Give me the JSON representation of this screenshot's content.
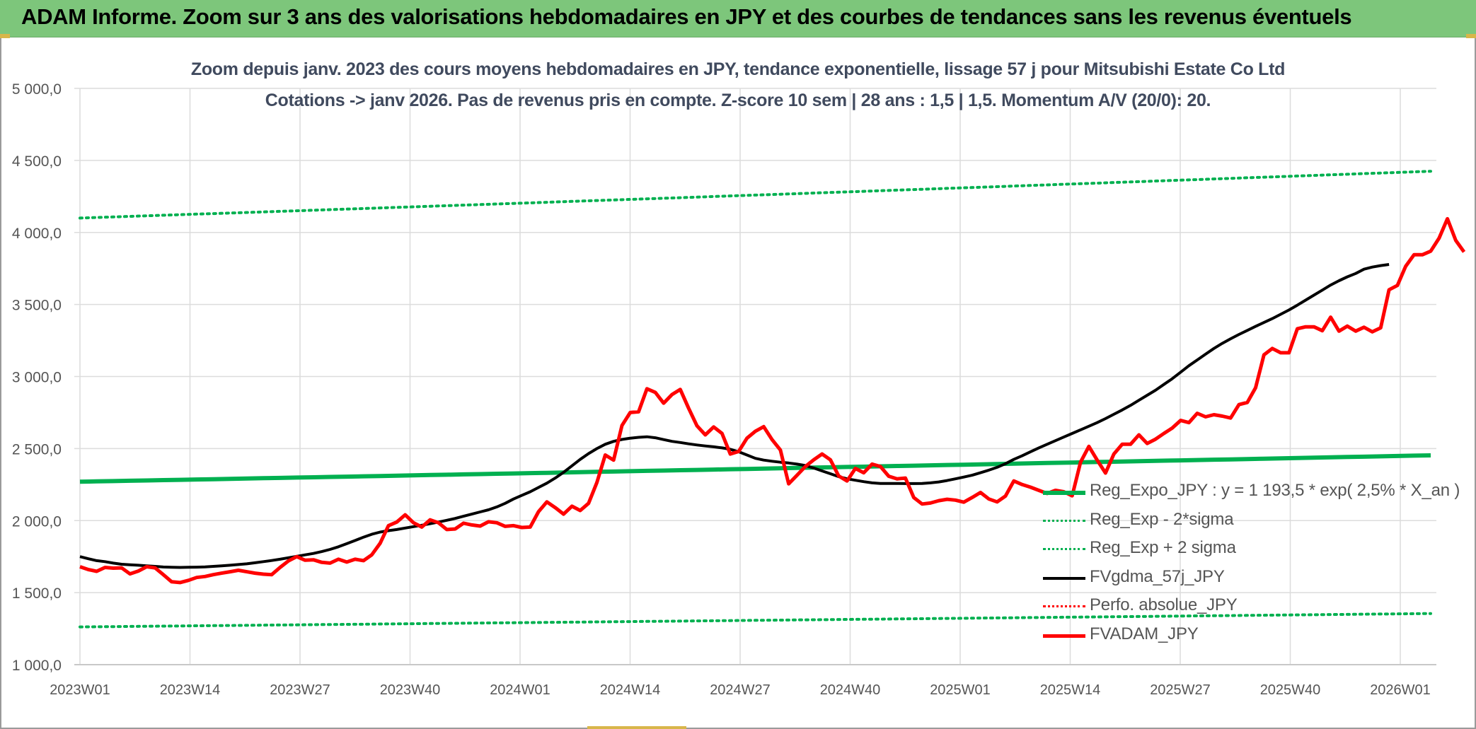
{
  "header": {
    "title": "ADAM Informe. Zoom sur 3 ans des valorisations hebdomadaires en JPY et des courbes de tendances sans les revenus éventuels"
  },
  "chart_data": {
    "type": "line",
    "title_lines": [
      "Zoom depuis janv. 2023 des cours moyens hebdomadaires en JPY, tendance exponentielle, lissage 57 j pour Mitsubishi Estate Co Ltd",
      "Cotations -> janv 2026. Pas de revenus pris en compte. Z-score 10 sem | 28 ans : 1,5 | 1,5. Momentum A/V (20/0): 20."
    ],
    "xlabel": "",
    "ylabel": "",
    "ylim": [
      1000,
      5000
    ],
    "yticks": [
      "1 000,0",
      "1 500,0",
      "2 000,0",
      "2 500,0",
      "3 000,0",
      "3 500,0",
      "4 000,0",
      "4 500,0",
      "5 000,0"
    ],
    "ytick_values": [
      1000,
      1500,
      2000,
      2500,
      3000,
      3500,
      4000,
      4500,
      5000
    ],
    "xticks": [
      "2023W01",
      "2023W14",
      "2023W27",
      "2023W40",
      "2024W01",
      "2024W14",
      "2024W27",
      "2024W40",
      "2025W01",
      "2025W14",
      "2025W27",
      "2025W40",
      "2026W01"
    ],
    "grid": true,
    "legend_position": "bottom-right",
    "series": [
      {
        "name": "Reg_Expo_JPY : y = 1 193,5 * exp( 2,5% *  X_an )",
        "color": "#00b050",
        "style": "solid",
        "width": 6,
        "values": [
          2270,
          2453
        ]
      },
      {
        "name": "Reg_Exp - 2*sigma",
        "color": "#00b050",
        "style": "dotted",
        "width": 4,
        "values": [
          1262,
          1355
        ]
      },
      {
        "name": "Reg_Exp + 2 sigma",
        "color": "#00b050",
        "style": "dotted",
        "width": 4,
        "values": [
          4100,
          4425
        ]
      },
      {
        "name": "FVgdma_57j_JPY",
        "color": "#000000",
        "style": "solid",
        "width": 4,
        "values": [
          1750,
          1735,
          1722,
          1715,
          1705,
          1697,
          1693,
          1690,
          1686,
          1682,
          1678,
          1676,
          1675,
          1676,
          1677,
          1679,
          1682,
          1686,
          1690,
          1695,
          1700,
          1707,
          1715,
          1723,
          1732,
          1742,
          1752,
          1762,
          1772,
          1785,
          1800,
          1818,
          1840,
          1862,
          1885,
          1905,
          1920,
          1930,
          1938,
          1948,
          1958,
          1968,
          1978,
          1990,
          2002,
          2015,
          2030,
          2045,
          2060,
          2075,
          2095,
          2120,
          2150,
          2175,
          2200,
          2230,
          2260,
          2295,
          2335,
          2380,
          2425,
          2465,
          2500,
          2530,
          2550,
          2563,
          2572,
          2578,
          2582,
          2575,
          2562,
          2550,
          2542,
          2533,
          2525,
          2518,
          2512,
          2505,
          2495,
          2478,
          2455,
          2432,
          2420,
          2412,
          2405,
          2400,
          2392,
          2382,
          2365,
          2345,
          2325,
          2305,
          2290,
          2280,
          2270,
          2262,
          2258,
          2258,
          2258,
          2257,
          2257,
          2258,
          2262,
          2268,
          2278,
          2290,
          2302,
          2315,
          2332,
          2350,
          2370,
          2395,
          2425,
          2450,
          2478,
          2505,
          2530,
          2555,
          2580,
          2605,
          2630,
          2655,
          2680,
          2708,
          2738,
          2768,
          2800,
          2835,
          2870,
          2905,
          2945,
          2985,
          3030,
          3075,
          3115,
          3155,
          3195,
          3230,
          3262,
          3292,
          3320,
          3348,
          3375,
          3402,
          3432,
          3462,
          3495,
          3530,
          3565,
          3600,
          3635,
          3665,
          3692,
          3715,
          3745,
          3760,
          3770,
          3778
        ]
      },
      {
        "name": "Perfo. absolue_JPY",
        "color": "#ff0000",
        "style": "dotted",
        "width": 3,
        "values": []
      },
      {
        "name": "FVADAM_JPY",
        "color": "#ff0000",
        "style": "solid",
        "width": 5,
        "values": [
          1680,
          1660,
          1648,
          1675,
          1670,
          1672,
          1630,
          1650,
          1680,
          1672,
          1625,
          1575,
          1570,
          1585,
          1605,
          1612,
          1625,
          1635,
          1645,
          1655,
          1645,
          1635,
          1628,
          1625,
          1675,
          1720,
          1750,
          1725,
          1728,
          1710,
          1705,
          1732,
          1712,
          1732,
          1722,
          1762,
          1842,
          1965,
          1990,
          2040,
          1985,
          1955,
          2005,
          1985,
          1938,
          1942,
          1982,
          1970,
          1962,
          1992,
          1985,
          1960,
          1965,
          1952,
          1955,
          2062,
          2130,
          2090,
          2045,
          2100,
          2070,
          2120,
          2265,
          2455,
          2420,
          2660,
          2750,
          2755,
          2915,
          2890,
          2815,
          2875,
          2910,
          2780,
          2658,
          2595,
          2650,
          2605,
          2462,
          2480,
          2572,
          2620,
          2652,
          2562,
          2490,
          2255,
          2315,
          2375,
          2422,
          2462,
          2422,
          2310,
          2275,
          2362,
          2332,
          2392,
          2375,
          2308,
          2290,
          2295,
          2160,
          2115,
          2122,
          2138,
          2148,
          2142,
          2128,
          2160,
          2195,
          2150,
          2130,
          2170,
          2275,
          2250,
          2232,
          2210,
          2188,
          2210,
          2200,
          2172,
          2405,
          2515,
          2420,
          2330,
          2462,
          2530,
          2530,
          2595,
          2535,
          2565,
          2605,
          2642,
          2695,
          2680,
          2745,
          2720,
          2735,
          2725,
          2712,
          2805,
          2820,
          2922,
          3150,
          3195,
          3165,
          3165,
          3332,
          3345,
          3345,
          3318,
          3412,
          3315,
          3350,
          3315,
          3342,
          3310,
          3338,
          3602,
          3632,
          3765,
          3845,
          3845,
          3870,
          3960,
          4095,
          3945,
          3865
        ]
      }
    ]
  }
}
